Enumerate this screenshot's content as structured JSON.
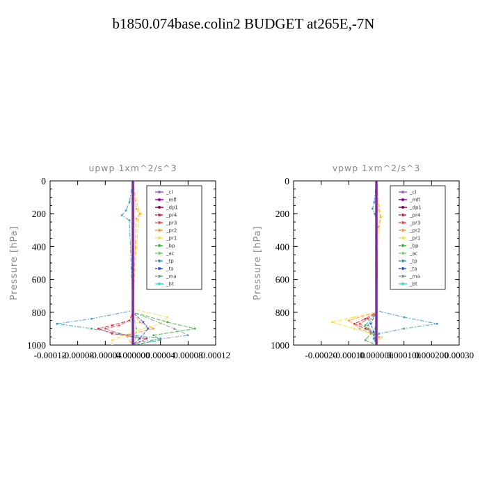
{
  "title": "b1850.074base.colin2  BUDGET at265E,-7N",
  "legend_entries": [
    "_cl",
    "_mfl",
    "_dp1",
    "_pr4",
    "_pr3",
    "_pr2",
    "_pr1",
    "_bp",
    "_ac",
    "_tp",
    "_ta",
    "_ma",
    "_bt"
  ],
  "legend_colors": [
    "#9966cc",
    "#990099",
    "#8b0055",
    "#cc2244",
    "#ff4444",
    "#ff9933",
    "#ffdd33",
    "#33bb33",
    "#66dd66",
    "#3399cc",
    "#2255ee",
    "#7799aa",
    "#33dddd"
  ],
  "chart_data": [
    {
      "type": "line",
      "title": "upwp   1xm^2/s^3",
      "ylabel": "Pressure [hPa]",
      "xlim": [
        -0.00012,
        0.00012
      ],
      "ylim": [
        0,
        1000
      ],
      "y_inverted": true,
      "x_tick_labels": [
        "-0.00012",
        "-0.00008",
        "-0.00004",
        "0.000000",
        "0.00004",
        "0.00008",
        "0.00012"
      ],
      "y_tick_labels": [
        "0",
        "200",
        "400",
        "600",
        "800",
        "1000"
      ],
      "legend_position": "top-right",
      "series": [
        {
          "name": "_cl",
          "y": [
            0,
            200,
            400,
            600,
            800,
            850,
            900,
            950,
            1000
          ],
          "x": [
            0,
            0,
            0,
            0,
            0,
            0,
            0,
            0,
            0
          ]
        },
        {
          "name": "_mfl",
          "y": [
            0,
            200,
            400,
            600,
            800,
            850,
            900,
            950,
            1000
          ],
          "x": [
            0,
            0,
            0,
            0,
            0,
            0,
            0,
            0,
            0
          ]
        },
        {
          "name": "_dp1",
          "y": [
            0,
            200,
            400,
            600,
            800,
            850,
            900,
            950,
            1000
          ],
          "x": [
            0,
            0,
            0,
            0,
            0,
            0,
            0,
            0,
            0
          ]
        },
        {
          "name": "_pr4",
          "y": [
            0,
            800,
            850,
            880,
            900,
            930,
            960,
            1000
          ],
          "x": [
            0,
            0,
            -5e-06,
            -3e-05,
            -5e-05,
            -3e-05,
            2e-05,
            0
          ]
        },
        {
          "name": "_pr3",
          "y": [
            0,
            800,
            850,
            880,
            900,
            930,
            960,
            1000
          ],
          "x": [
            0,
            0,
            -5e-06,
            -2e-05,
            -4e-05,
            -2e-05,
            1e-05,
            0
          ]
        },
        {
          "name": "_pr2",
          "y": [
            0,
            170,
            200,
            230,
            800,
            860,
            900,
            940,
            1000
          ],
          "x": [
            0,
            5e-06,
            1e-05,
            5e-06,
            0,
            1e-05,
            3e-05,
            -1e-05,
            0
          ]
        },
        {
          "name": "_pr1",
          "y": [
            0,
            170,
            200,
            240,
            780,
            830,
            870,
            920,
            970,
            1000
          ],
          "x": [
            0,
            8e-06,
            1.2e-05,
            8e-06,
            0,
            5e-05,
            4e-05,
            0,
            -3e-05,
            -3e-05
          ]
        },
        {
          "name": "_bp",
          "y": [
            0,
            800,
            860,
            900,
            940,
            970,
            1000
          ],
          "x": [
            0,
            0,
            5e-05,
            9e-05,
            3e-05,
            4e-05,
            0
          ]
        },
        {
          "name": "_ac",
          "y": [
            0,
            800,
            900,
            950,
            1000
          ],
          "x": [
            0,
            0,
            5e-06,
            5e-06,
            0
          ]
        },
        {
          "name": "_tp",
          "y": [
            0,
            130,
            180,
            210,
            240,
            790,
            840,
            870,
            900,
            930,
            960,
            1000
          ],
          "x": [
            0,
            -5e-06,
            -1e-05,
            -1.6e-05,
            -5e-06,
            0,
            -6e-05,
            -0.00011,
            -6e-05,
            -2e-05,
            4e-05,
            5e-06
          ]
        },
        {
          "name": "_ta",
          "y": [
            0,
            800,
            860,
            900,
            960,
            1000
          ],
          "x": [
            0,
            0,
            1.5e-05,
            2.2e-05,
            1e-05,
            0
          ]
        },
        {
          "name": "_ma",
          "y": [
            0,
            800,
            900,
            940,
            980,
            1000
          ],
          "x": [
            0,
            0,
            6e-05,
            8e-05,
            1e-05,
            0
          ]
        },
        {
          "name": "_bt",
          "y": [
            0,
            200,
            400,
            600,
            800,
            850,
            900,
            950,
            1000
          ],
          "x": [
            0,
            0,
            0,
            0,
            0,
            0,
            0,
            0,
            0
          ]
        }
      ]
    },
    {
      "type": "line",
      "title": "vpwp   1xm^2/s^3",
      "ylabel": "Pressure [hPa]",
      "xlim": [
        -0.0003,
        0.0003
      ],
      "ylim": [
        0,
        1000
      ],
      "y_inverted": true,
      "x_tick_labels": [
        "-0.00020",
        "-0.00010",
        "0.000000",
        "0.000100",
        "0.000200",
        "0.00030"
      ],
      "y_tick_labels": [
        "0",
        "200",
        "400",
        "600",
        "800",
        "1000"
      ],
      "legend_position": "top-right",
      "series": [
        {
          "name": "_cl",
          "y": [
            0,
            200,
            400,
            600,
            800,
            850,
            900,
            950,
            1000
          ],
          "x": [
            0,
            0,
            0,
            0,
            0,
            0,
            0,
            0,
            0
          ]
        },
        {
          "name": "_mfl",
          "y": [
            0,
            200,
            400,
            600,
            800,
            850,
            900,
            950,
            1000
          ],
          "x": [
            0,
            0,
            0,
            0,
            0,
            0,
            0,
            0,
            0
          ]
        },
        {
          "name": "_dp1",
          "y": [
            0,
            200,
            400,
            600,
            800,
            850,
            900,
            950,
            1000
          ],
          "x": [
            0,
            0,
            0,
            0,
            0,
            0,
            0,
            0,
            0
          ]
        },
        {
          "name": "_pr4",
          "y": [
            0,
            800,
            840,
            870,
            900,
            940,
            1000
          ],
          "x": [
            0,
            0,
            -4e-05,
            -8e-05,
            -4e-05,
            0,
            0
          ]
        },
        {
          "name": "_pr3",
          "y": [
            0,
            800,
            840,
            870,
            900,
            940,
            1000
          ],
          "x": [
            0,
            0,
            -3e-05,
            -6e-05,
            -3e-05,
            0,
            0
          ]
        },
        {
          "name": "_pr2",
          "y": [
            0,
            180,
            220,
            280,
            300,
            800,
            850,
            900,
            950,
            1000
          ],
          "x": [
            0,
            1e-05,
            1.5e-05,
            8e-06,
            0,
            0,
            -0.0001,
            -6e-05,
            1e-05,
            0
          ]
        },
        {
          "name": "_pr1",
          "y": [
            0,
            180,
            220,
            300,
            800,
            830,
            860,
            900,
            950,
            1000
          ],
          "x": [
            0,
            1.2e-05,
            1.8e-05,
            8e-06,
            0,
            -8e-05,
            -0.00016,
            -8e-05,
            2e-05,
            0
          ]
        },
        {
          "name": "_bp",
          "y": [
            0,
            800,
            880,
            930,
            970,
            1000
          ],
          "x": [
            0,
            0,
            -4e-05,
            -2e-05,
            -4e-05,
            0
          ]
        },
        {
          "name": "_ac",
          "y": [
            0,
            800,
            900,
            960,
            1000
          ],
          "x": [
            0,
            0,
            -5e-06,
            -5e-06,
            0
          ]
        },
        {
          "name": "_tp",
          "y": [
            0,
            130,
            170,
            200,
            240,
            790,
            830,
            870,
            900,
            930,
            960,
            1000
          ],
          "x": [
            0,
            -8e-06,
            -1.4e-05,
            -6e-06,
            0,
            0,
            0.0001,
            0.00022,
            0.0001,
            1e-05,
            -1e-05,
            0
          ]
        },
        {
          "name": "_ta",
          "y": [
            0,
            800,
            870,
            920,
            1000
          ],
          "x": [
            0,
            0,
            -2e-05,
            -1e-05,
            0
          ]
        },
        {
          "name": "_ma",
          "y": [
            0,
            800,
            880,
            940,
            1000
          ],
          "x": [
            0,
            0,
            -3e-05,
            -1e-05,
            0
          ]
        },
        {
          "name": "_bt",
          "y": [
            0,
            200,
            400,
            600,
            800,
            850,
            900,
            950,
            1000
          ],
          "x": [
            0,
            0,
            0,
            0,
            0,
            0,
            0,
            0,
            0
          ]
        }
      ]
    }
  ]
}
